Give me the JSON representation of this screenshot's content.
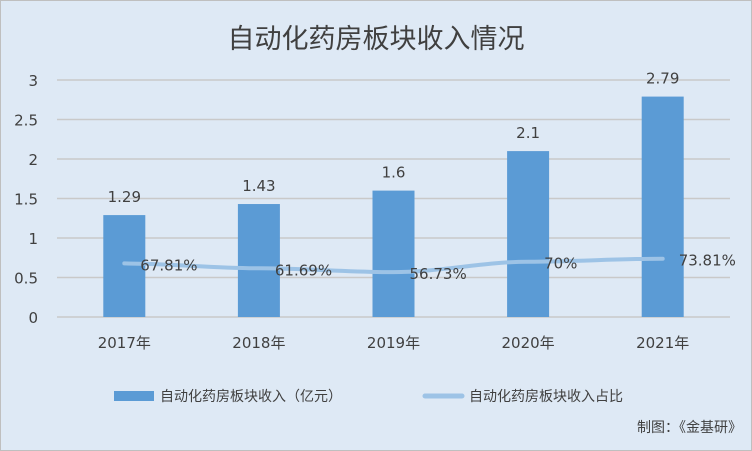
{
  "chart_data": {
    "type": "bar",
    "title": "自动化药房板块收入情况",
    "categories": [
      "2017年",
      "2018年",
      "2019年",
      "2020年",
      "2021年"
    ],
    "series": [
      {
        "name": "自动化药房板块收入（亿元）",
        "type": "bar",
        "values": [
          1.29,
          1.43,
          1.6,
          2.1,
          2.79
        ],
        "labels": [
          "1.29",
          "1.43",
          "1.6",
          "2.1",
          "2.79"
        ],
        "color": "#5b9bd5"
      },
      {
        "name": "自动化药房板块收入占比",
        "type": "line",
        "values": [
          0.6781,
          0.6169,
          0.5673,
          0.7,
          0.7381
        ],
        "labels": [
          "67.81%",
          "61.69%",
          "56.73%",
          "70%",
          "73.81%"
        ],
        "color": "#9dc3e6"
      }
    ],
    "yticks": [
      "0",
      "0.5",
      "1",
      "1.5",
      "2",
      "2.5",
      "3"
    ],
    "ylim": [
      0,
      3
    ],
    "grid": true,
    "legend": "bottom"
  },
  "footer": {
    "source": "制图：《金基研》"
  }
}
